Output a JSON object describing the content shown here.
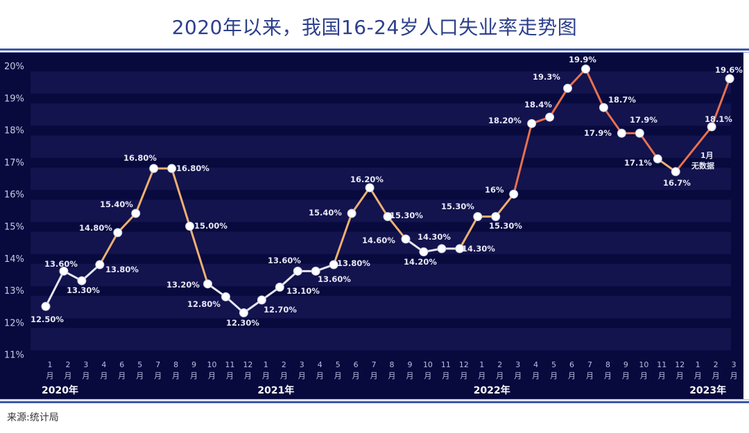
{
  "header": {
    "title": "2020年以来，我国16-24岁人口失业率走势图"
  },
  "footer": {
    "source": "来源:统计局"
  },
  "colors": {
    "title": "#2c3f8c",
    "panel_bg": "#080a3e",
    "band_light": "#13134e",
    "line_low": "#e6e6ee",
    "line_mid": "#f0b070",
    "line_high": "#e9714e",
    "marker": "#ffffff"
  },
  "chart_data": {
    "type": "line",
    "title": "2020年以来，我国16-24岁人口失业率走势图",
    "xlabel": "",
    "ylabel": "",
    "ylim": [
      11,
      20
    ],
    "yticks": [
      "20%",
      "19%",
      "18%",
      "17%",
      "16%",
      "15%",
      "14%",
      "13%",
      "12%",
      "11%"
    ],
    "grid": "alternating horizontal bands",
    "legend": "none",
    "x_tick_labels": [
      "1",
      "2",
      "3",
      "4",
      "6",
      "5",
      "7",
      "8",
      "9",
      "10",
      "11",
      "12",
      "1",
      "2",
      "3",
      "4",
      "5",
      "6",
      "7",
      "8",
      "9",
      "10",
      "11",
      "12",
      "1",
      "2",
      "3",
      "4",
      "5",
      "6",
      "7",
      "8",
      "9",
      "10",
      "11",
      "12",
      "1",
      "2",
      "3"
    ],
    "x_tick_suffix": "月",
    "year_labels": [
      {
        "label": "2020年",
        "index": 0
      },
      {
        "label": "2021年",
        "index": 12
      },
      {
        "label": "2022年",
        "index": 24
      },
      {
        "label": "2023年",
        "index": 36
      }
    ],
    "series": [
      {
        "name": "16-24岁人口失业率",
        "points": [
          {
            "i": 0,
            "x": "2020-01",
            "value": 12.5,
            "label": "12.50%",
            "pos": "below"
          },
          {
            "i": 1,
            "x": "2020-02",
            "value": 13.6,
            "label": "13.60%",
            "pos": "above"
          },
          {
            "i": 2,
            "x": "2020-03",
            "value": 13.3,
            "label": "13.30%",
            "pos": "below"
          },
          {
            "i": 3,
            "x": "2020-04",
            "value": 13.8,
            "label": "13.80%",
            "pos": "right"
          },
          {
            "i": 4,
            "x": "2020-06",
            "value": 14.8,
            "label": "14.80%",
            "pos": "aboveleft"
          },
          {
            "i": 5,
            "x": "2020-05",
            "value": 15.4,
            "label": "15.40%",
            "pos": "aboveleft"
          },
          {
            "i": 6,
            "x": "2020-07",
            "value": 16.8,
            "label": "16.80%",
            "pos": "aboveleft"
          },
          {
            "i": 7,
            "x": "2020-08",
            "value": 16.8,
            "label": "16.80%",
            "pos": "right"
          },
          {
            "i": 8,
            "x": "2020-09",
            "value": 15.0,
            "label": "15.00%",
            "pos": "right"
          },
          {
            "i": 9,
            "x": "2020-10",
            "value": 13.2,
            "label": "13.20%",
            "pos": "left"
          },
          {
            "i": 10,
            "x": "2020-11",
            "value": 12.8,
            "label": "12.80%",
            "pos": "belowleft"
          },
          {
            "i": 11,
            "x": "2020-12",
            "value": 12.3,
            "label": "12.30%",
            "pos": "below"
          },
          {
            "i": 12,
            "x": "2021-01",
            "value": 12.7,
            "label": "",
            "pos": "none"
          },
          {
            "i": 13,
            "x": "2021-02",
            "value": 13.1,
            "label": "12.70%",
            "pos": "belowright"
          },
          {
            "i": 14,
            "x": "2021-03",
            "value": 13.6,
            "label": "13.10%",
            "pos": "belowright2"
          },
          {
            "i": 15,
            "x": "2021-04",
            "value": 13.6,
            "label": "13.60%",
            "pos": "aboveleft"
          },
          {
            "i": 16,
            "x": "2021-05",
            "value": 13.8,
            "label": "13.60%",
            "pos": "belowleft"
          },
          {
            "i": 17,
            "x": "2021-06",
            "value": 15.4,
            "label": "13.80%",
            "pos": "belowright3"
          },
          {
            "i": 18,
            "x": "2021-07",
            "value": 16.2,
            "label": "15.40%",
            "pos": "leftprev"
          },
          {
            "i": 19,
            "x": "2021-08",
            "value": 15.3,
            "label": "16.20%",
            "pos": "aboveprev"
          },
          {
            "i": 20,
            "x": "2021-09",
            "value": 14.6,
            "label": "15.30%",
            "pos": "rightprev"
          },
          {
            "i": 21,
            "x": "2021-10",
            "value": 14.2,
            "label": "14.60%",
            "pos": "leftprev"
          },
          {
            "i": 22,
            "x": "2021-11",
            "value": 14.3,
            "label": "14.30%",
            "pos": "above"
          },
          {
            "i": 23,
            "x": "2021-12",
            "value": 14.3,
            "label": "14.30%",
            "pos": "right"
          },
          {
            "i": 24,
            "x": "2022-01",
            "value": 15.3,
            "label": "15.30%",
            "pos": "aboveleft"
          },
          {
            "i": 25,
            "x": "2022-02",
            "value": 15.3,
            "label": "15.30%",
            "pos": "below"
          },
          {
            "i": 26,
            "x": "2022-03",
            "value": 16.0,
            "label": "16%",
            "pos": "left"
          },
          {
            "i": 27,
            "x": "2022-04",
            "value": 18.2,
            "label": "18.20%",
            "pos": "left"
          },
          {
            "i": 28,
            "x": "2022-05",
            "value": 18.4,
            "label": "18.4%",
            "pos": "aboveleft"
          },
          {
            "i": 29,
            "x": "2022-06",
            "value": 19.3,
            "label": "19.3%",
            "pos": "aboveleft"
          },
          {
            "i": 30,
            "x": "2022-07",
            "value": 19.9,
            "label": "19.9%",
            "pos": "above"
          },
          {
            "i": 31,
            "x": "2022-08",
            "value": 18.7,
            "label": "18.7%",
            "pos": "right"
          },
          {
            "i": 32,
            "x": "2022-09",
            "value": 17.9,
            "label": "17.9%",
            "pos": "belowleft"
          },
          {
            "i": 33,
            "x": "2022-10",
            "value": 17.9,
            "label": "17.9%",
            "pos": "above"
          },
          {
            "i": 34,
            "x": "2022-11",
            "value": 17.1,
            "label": "17.1%",
            "pos": "belowleft"
          },
          {
            "i": 35,
            "x": "2022-12",
            "value": 16.7,
            "label": "16.7%",
            "pos": "below"
          },
          {
            "i": 37,
            "x": "2023-02",
            "value": 18.1,
            "label": "18.1%",
            "pos": "aboveleft"
          },
          {
            "i": 38,
            "x": "2023-03",
            "value": 19.6,
            "label": "19.6%",
            "pos": "above"
          }
        ]
      }
    ],
    "annotations": [
      {
        "text_line1": "1月",
        "text_line2": "无数据",
        "index": 36
      }
    ]
  }
}
